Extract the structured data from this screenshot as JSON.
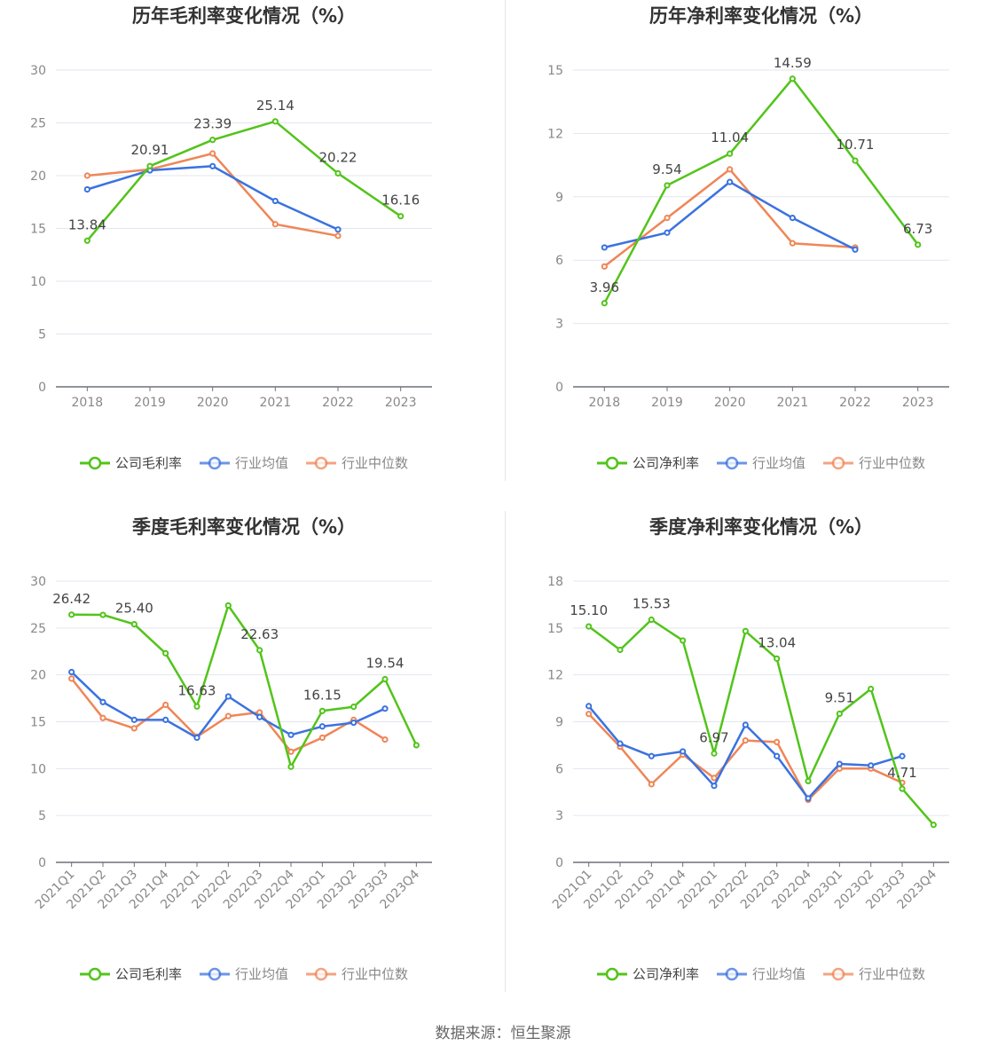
{
  "colors": {
    "company": "#52c41a",
    "avg": "#3a72e0",
    "median": "#ef8657"
  },
  "source_label": "数据来源：恒生聚源",
  "chart_data": [
    {
      "type": "line",
      "title": "历年毛利率变化情况（%）",
      "categories": [
        "2018",
        "2019",
        "2020",
        "2021",
        "2022",
        "2023"
      ],
      "ylim": [
        0,
        30
      ],
      "yticks": [
        0,
        5,
        10,
        15,
        20,
        25,
        30
      ],
      "series": [
        {
          "name": "公司毛利率",
          "key": "company",
          "values": [
            13.84,
            20.91,
            23.39,
            25.14,
            20.22,
            16.16
          ],
          "labels": [
            "13.84",
            "20.91",
            "23.39",
            "25.14",
            "20.22",
            "16.16"
          ]
        },
        {
          "name": "行业均值",
          "key": "avg",
          "values": [
            18.7,
            20.5,
            20.9,
            17.6,
            14.9,
            null
          ]
        },
        {
          "name": "行业中位数",
          "key": "median",
          "values": [
            20.0,
            20.6,
            22.1,
            15.4,
            14.3,
            null
          ]
        }
      ],
      "grid": true,
      "legend": "bottom-center"
    },
    {
      "type": "line",
      "title": "历年净利率变化情况（%）",
      "categories": [
        "2018",
        "2019",
        "2020",
        "2021",
        "2022",
        "2023"
      ],
      "ylim": [
        0,
        15
      ],
      "yticks": [
        0,
        3,
        6,
        9,
        12,
        15
      ],
      "series": [
        {
          "name": "公司净利率",
          "key": "company",
          "values": [
            3.96,
            9.54,
            11.04,
            14.59,
            10.71,
            6.73
          ],
          "labels": [
            "3.96",
            "9.54",
            "11.04",
            "14.59",
            "10.71",
            "6.73"
          ]
        },
        {
          "name": "行业均值",
          "key": "avg",
          "values": [
            6.6,
            7.3,
            9.7,
            8.0,
            6.5,
            null
          ]
        },
        {
          "name": "行业中位数",
          "key": "median",
          "values": [
            5.7,
            8.0,
            10.3,
            6.8,
            6.6,
            null
          ]
        }
      ],
      "grid": true,
      "legend": "bottom-center"
    },
    {
      "type": "line",
      "title": "季度毛利率变化情况（%）",
      "categories": [
        "2021Q1",
        "2021Q2",
        "2021Q3",
        "2021Q4",
        "2022Q1",
        "2022Q2",
        "2022Q3",
        "2022Q4",
        "2023Q1",
        "2023Q2",
        "2023Q3",
        "2023Q4"
      ],
      "ylim": [
        0,
        30
      ],
      "yticks": [
        0,
        5,
        10,
        15,
        20,
        25,
        30
      ],
      "series": [
        {
          "name": "公司毛利率",
          "key": "company",
          "values": [
            26.42,
            26.4,
            25.4,
            22.3,
            16.63,
            27.4,
            22.63,
            10.2,
            16.15,
            16.6,
            19.54,
            12.5
          ],
          "labels": [
            "26.42",
            "",
            "25.40",
            "",
            "16.63",
            "",
            "22.63",
            "",
            "16.15",
            "",
            "19.54",
            ""
          ]
        },
        {
          "name": "行业均值",
          "key": "avg",
          "values": [
            20.3,
            17.1,
            15.2,
            15.2,
            13.3,
            17.7,
            15.5,
            13.6,
            14.5,
            14.9,
            16.4,
            null
          ]
        },
        {
          "name": "行业中位数",
          "key": "median",
          "values": [
            19.6,
            15.4,
            14.3,
            16.8,
            13.4,
            15.6,
            16.0,
            11.8,
            13.3,
            15.2,
            13.1,
            null
          ]
        }
      ],
      "grid": true,
      "legend": "bottom-center"
    },
    {
      "type": "line",
      "title": "季度净利率变化情况（%）",
      "categories": [
        "2021Q1",
        "2021Q2",
        "2021Q3",
        "2021Q4",
        "2022Q1",
        "2022Q2",
        "2022Q3",
        "2022Q4",
        "2023Q1",
        "2023Q2",
        "2023Q3",
        "2023Q4"
      ],
      "ylim": [
        0,
        18
      ],
      "yticks": [
        0,
        3,
        6,
        9,
        12,
        15,
        18
      ],
      "series": [
        {
          "name": "公司净利率",
          "key": "company",
          "values": [
            15.1,
            13.6,
            15.53,
            14.2,
            6.97,
            14.8,
            13.04,
            5.2,
            9.51,
            11.1,
            4.71,
            2.4
          ],
          "labels": [
            "15.10",
            "",
            "15.53",
            "",
            "6.97",
            "",
            "13.04",
            "",
            "9.51",
            "",
            "4.71",
            ""
          ]
        },
        {
          "name": "行业均值",
          "key": "avg",
          "values": [
            10.0,
            7.6,
            6.8,
            7.1,
            4.9,
            8.8,
            6.8,
            4.1,
            6.3,
            6.2,
            6.8,
            null
          ]
        },
        {
          "name": "行业中位数",
          "key": "median",
          "values": [
            9.5,
            7.4,
            5.0,
            6.9,
            5.4,
            7.8,
            7.7,
            4.0,
            6.0,
            6.0,
            5.1,
            null
          ]
        }
      ],
      "grid": true,
      "legend": "bottom-center"
    }
  ]
}
